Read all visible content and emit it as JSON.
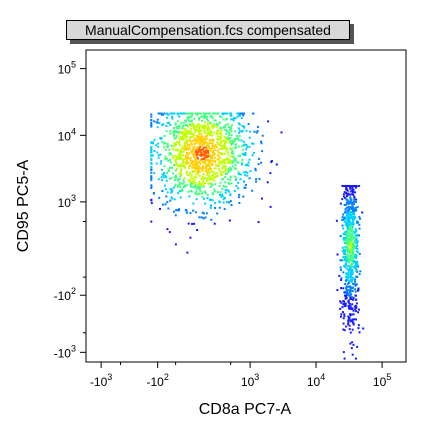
{
  "chart_data": {
    "type": "scatter",
    "title": "ManualCompensation.fcs compensated",
    "xlabel": "CD8a PC7-A",
    "ylabel": "CD95 PC5-A",
    "x_scale": "biexponential",
    "y_scale": "biexponential",
    "x_ticks": [
      {
        "value": -1000,
        "label_base": "-10",
        "label_exp": "3"
      },
      {
        "value": -100,
        "label_base": "-10",
        "label_exp": "2"
      },
      {
        "value": 1000,
        "label_base": "10",
        "label_exp": "3"
      },
      {
        "value": 10000,
        "label_base": "10",
        "label_exp": "4"
      },
      {
        "value": 100000,
        "label_base": "10",
        "label_exp": "5"
      }
    ],
    "y_ticks": [
      {
        "value": -1000,
        "label_base": "-10",
        "label_exp": "3"
      },
      {
        "value": -100,
        "label_base": "-10",
        "label_exp": "2"
      },
      {
        "value": 1000,
        "label_base": "10",
        "label_exp": "3"
      },
      {
        "value": 10000,
        "label_base": "10",
        "label_exp": "4"
      },
      {
        "value": 100000,
        "label_base": "10",
        "label_exp": "5"
      }
    ],
    "populations": [
      {
        "x_center": 150,
        "y_center": 5500,
        "x_range": [
          -150,
          3000
        ],
        "y_range": [
          150,
          22000
        ],
        "density": "high"
      },
      {
        "x_center": 32000,
        "y_center": 200,
        "x_range": [
          12000,
          50000
        ],
        "y_range": [
          -1200,
          1800
        ],
        "density": "medium"
      }
    ],
    "density_colors": [
      "#1a1aff",
      "#0080ff",
      "#00d0ff",
      "#40ff80",
      "#c0ff00",
      "#ffd000",
      "#ff6000"
    ],
    "grid": false
  }
}
